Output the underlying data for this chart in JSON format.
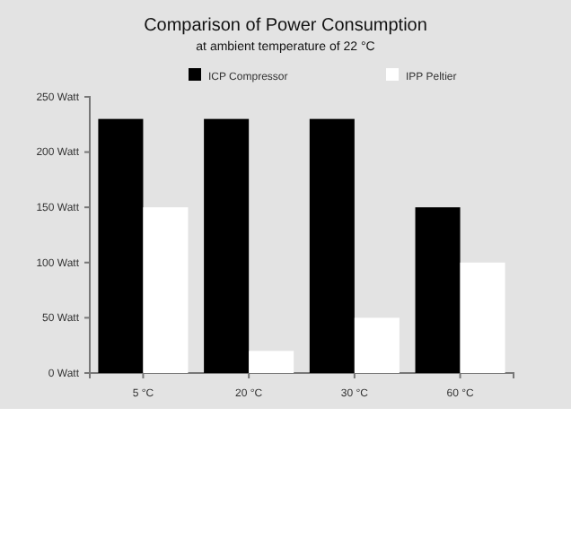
{
  "chart_data": {
    "type": "bar",
    "title": "Comparison of Power Consumption",
    "subtitle": "at ambient temperature of 22 °C",
    "categories": [
      "5 °C",
      "20 °C",
      "30 °C",
      "60 °C"
    ],
    "series": [
      {
        "name": "ICP Compressor",
        "color": "#000000",
        "values": [
          230,
          230,
          230,
          150
        ]
      },
      {
        "name": "IPP Peltier",
        "color": "#ffffff",
        "values": [
          150,
          20,
          50,
          100
        ]
      }
    ],
    "ylim": [
      0,
      250
    ],
    "yticks": [
      {
        "value": 0,
        "label": "0 Watt"
      },
      {
        "value": 50,
        "label": "50 Watt"
      },
      {
        "value": 100,
        "label": "100 Watt"
      },
      {
        "value": 150,
        "label": "150 Watt"
      },
      {
        "value": 200,
        "label": "200 Watt"
      },
      {
        "value": 250,
        "label": "250 Watt"
      }
    ],
    "legend": "top",
    "grid": false
  }
}
